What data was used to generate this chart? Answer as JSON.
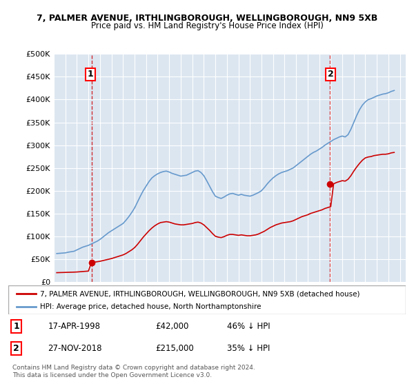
{
  "title1": "7, PALMER AVENUE, IRTHLINGBOROUGH, WELLINGBOROUGH, NN9 5XB",
  "title2": "Price paid vs. HM Land Registry's House Price Index (HPI)",
  "ylabel": "",
  "background_color": "#dce6f1",
  "plot_bg": "#dce6f1",
  "ylim": [
    0,
    500000
  ],
  "yticks": [
    0,
    50000,
    100000,
    150000,
    200000,
    250000,
    300000,
    350000,
    400000,
    450000,
    500000
  ],
  "ytick_labels": [
    "£0",
    "£50K",
    "£100K",
    "£150K",
    "£200K",
    "£250K",
    "£300K",
    "£350K",
    "£400K",
    "£450K",
    "£500K"
  ],
  "xlim_start": 1995.0,
  "xlim_end": 2025.5,
  "marker1_x": 1998.3,
  "marker1_y": 42000,
  "marker1_label": "1",
  "marker1_date": "17-APR-1998",
  "marker1_price": "£42,000",
  "marker1_hpi": "46% ↓ HPI",
  "marker2_x": 2018.92,
  "marker2_y": 215000,
  "marker2_label": "2",
  "marker2_date": "27-NOV-2018",
  "marker2_price": "£215,000",
  "marker2_hpi": "35% ↓ HPI",
  "red_line_color": "#cc0000",
  "blue_line_color": "#6699cc",
  "legend_red": "7, PALMER AVENUE, IRTHLINGBOROUGH, WELLINGBOROUGH, NN9 5XB (detached house)",
  "legend_blue": "HPI: Average price, detached house, North Northamptonshire",
  "footnote": "Contains HM Land Registry data © Crown copyright and database right 2024.\nThis data is licensed under the Open Government Licence v3.0.",
  "hpi_data": {
    "years": [
      1995.25,
      1995.5,
      1995.75,
      1996.0,
      1996.25,
      1996.5,
      1996.75,
      1997.0,
      1997.25,
      1997.5,
      1997.75,
      1998.0,
      1998.25,
      1998.5,
      1998.75,
      1999.0,
      1999.25,
      1999.5,
      1999.75,
      2000.0,
      2000.25,
      2000.5,
      2000.75,
      2001.0,
      2001.25,
      2001.5,
      2001.75,
      2002.0,
      2002.25,
      2002.5,
      2002.75,
      2003.0,
      2003.25,
      2003.5,
      2003.75,
      2004.0,
      2004.25,
      2004.5,
      2004.75,
      2005.0,
      2005.25,
      2005.5,
      2005.75,
      2006.0,
      2006.25,
      2006.5,
      2006.75,
      2007.0,
      2007.25,
      2007.5,
      2007.75,
      2008.0,
      2008.25,
      2008.5,
      2008.75,
      2009.0,
      2009.25,
      2009.5,
      2009.75,
      2010.0,
      2010.25,
      2010.5,
      2010.75,
      2011.0,
      2011.25,
      2011.5,
      2011.75,
      2012.0,
      2012.25,
      2012.5,
      2012.75,
      2013.0,
      2013.25,
      2013.5,
      2013.75,
      2014.0,
      2014.25,
      2014.5,
      2014.75,
      2015.0,
      2015.25,
      2015.5,
      2015.75,
      2016.0,
      2016.25,
      2016.5,
      2016.75,
      2017.0,
      2017.25,
      2017.5,
      2017.75,
      2018.0,
      2018.25,
      2018.5,
      2018.75,
      2019.0,
      2019.25,
      2019.5,
      2019.75,
      2020.0,
      2020.25,
      2020.5,
      2020.75,
      2021.0,
      2021.25,
      2021.5,
      2021.75,
      2022.0,
      2022.25,
      2022.5,
      2022.75,
      2023.0,
      2023.25,
      2023.5,
      2023.75,
      2024.0,
      2024.25,
      2024.5
    ],
    "values": [
      62000,
      62500,
      63000,
      63500,
      65000,
      66000,
      67000,
      70000,
      73000,
      76000,
      78000,
      80000,
      83000,
      86000,
      89000,
      93000,
      98000,
      103000,
      108000,
      112000,
      116000,
      120000,
      124000,
      128000,
      135000,
      143000,
      152000,
      162000,
      175000,
      188000,
      200000,
      210000,
      220000,
      228000,
      233000,
      237000,
      240000,
      242000,
      243000,
      241000,
      238000,
      236000,
      234000,
      232000,
      233000,
      234000,
      237000,
      240000,
      243000,
      244000,
      240000,
      233000,
      222000,
      210000,
      198000,
      188000,
      185000,
      183000,
      186000,
      190000,
      193000,
      194000,
      192000,
      190000,
      192000,
      190000,
      189000,
      188000,
      190000,
      193000,
      196000,
      200000,
      207000,
      215000,
      222000,
      228000,
      233000,
      237000,
      240000,
      242000,
      244000,
      247000,
      250000,
      255000,
      260000,
      265000,
      270000,
      275000,
      280000,
      284000,
      287000,
      291000,
      295000,
      300000,
      304000,
      308000,
      312000,
      315000,
      318000,
      320000,
      318000,
      323000,
      335000,
      350000,
      365000,
      378000,
      388000,
      395000,
      400000,
      402000,
      405000,
      408000,
      410000,
      412000,
      413000,
      415000,
      418000,
      420000
    ]
  },
  "price_data": {
    "years": [
      1995.25,
      1995.5,
      1995.75,
      1996.0,
      1996.25,
      1996.5,
      1996.75,
      1997.0,
      1997.25,
      1997.5,
      1997.75,
      1998.0,
      1998.25,
      1998.5,
      1998.75,
      1999.0,
      1999.25,
      1999.5,
      1999.75,
      2000.0,
      2000.25,
      2000.5,
      2000.75,
      2001.0,
      2001.25,
      2001.5,
      2001.75,
      2002.0,
      2002.25,
      2002.5,
      2002.75,
      2003.0,
      2003.25,
      2003.5,
      2003.75,
      2004.0,
      2004.25,
      2004.5,
      2004.75,
      2005.0,
      2005.25,
      2005.5,
      2005.75,
      2006.0,
      2006.25,
      2006.5,
      2006.75,
      2007.0,
      2007.25,
      2007.5,
      2007.75,
      2008.0,
      2008.25,
      2008.5,
      2008.75,
      2009.0,
      2009.25,
      2009.5,
      2009.75,
      2010.0,
      2010.25,
      2010.5,
      2010.75,
      2011.0,
      2011.25,
      2011.5,
      2011.75,
      2012.0,
      2012.25,
      2012.5,
      2012.75,
      2013.0,
      2013.25,
      2013.5,
      2013.75,
      2014.0,
      2014.25,
      2014.5,
      2014.75,
      2015.0,
      2015.25,
      2015.5,
      2015.75,
      2016.0,
      2016.25,
      2016.5,
      2016.75,
      2017.0,
      2017.25,
      2017.5,
      2017.75,
      2018.0,
      2018.25,
      2018.5,
      2018.75,
      2019.0,
      2019.25,
      2019.5,
      2019.75,
      2020.0,
      2020.25,
      2020.5,
      2020.75,
      2021.0,
      2021.25,
      2021.5,
      2021.75,
      2022.0,
      2022.25,
      2022.5,
      2022.75,
      2023.0,
      2023.25,
      2023.5,
      2023.75,
      2024.0,
      2024.25,
      2024.5
    ],
    "values": [
      20000,
      20200,
      20400,
      20600,
      20800,
      21000,
      21200,
      21500,
      22000,
      22500,
      23000,
      23500,
      42000,
      43000,
      44000,
      45000,
      46500,
      48000,
      49500,
      51000,
      53000,
      55000,
      57000,
      59000,
      62000,
      66000,
      70000,
      75000,
      82000,
      90000,
      98000,
      105000,
      112000,
      118000,
      123000,
      127000,
      130000,
      131000,
      132000,
      131000,
      129000,
      127000,
      126000,
      125000,
      125000,
      126000,
      127000,
      128000,
      130000,
      131000,
      129000,
      125000,
      119000,
      113000,
      106000,
      100000,
      98000,
      97000,
      99000,
      102000,
      104000,
      104000,
      103000,
      102000,
      103000,
      102000,
      101000,
      101000,
      102000,
      103000,
      105000,
      108000,
      111000,
      115000,
      119000,
      122000,
      125000,
      127000,
      129000,
      130000,
      131000,
      132000,
      134000,
      137000,
      140000,
      143000,
      145000,
      147000,
      150000,
      152000,
      154000,
      156000,
      158000,
      161000,
      163000,
      165000,
      215000,
      218000,
      220000,
      222000,
      221000,
      225000,
      233000,
      243000,
      252000,
      260000,
      267000,
      272000,
      274000,
      275000,
      277000,
      278000,
      279000,
      280000,
      280000,
      281000,
      283000,
      284000
    ]
  }
}
